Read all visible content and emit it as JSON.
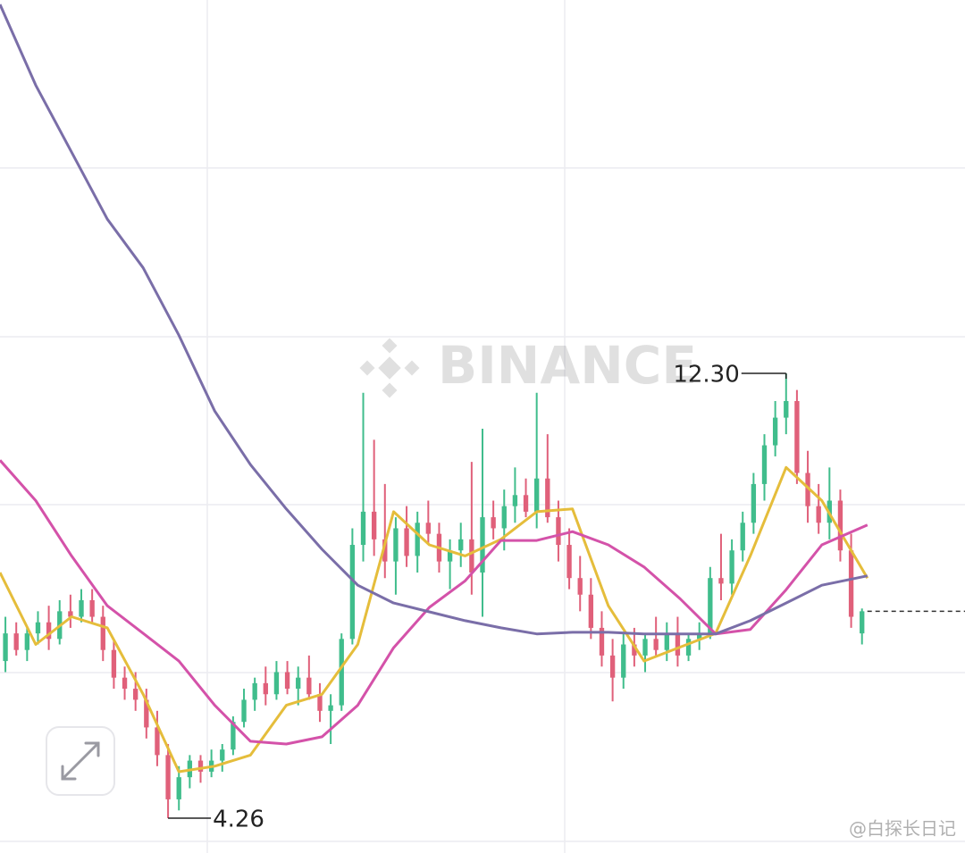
{
  "chart_data": {
    "type": "candlestick",
    "watermark": "BINANCE",
    "credit": "@白探长日记",
    "ylim": [
      3.63,
      19.05
    ],
    "xlim": [
      -0.5,
      88.5
    ],
    "up_color": "#40bd8c",
    "down_color": "#e0607a",
    "open": [
      7.1,
      7.6,
      7.3,
      7.6,
      7.8,
      7.5,
      8.0,
      7.9,
      8.2,
      7.9,
      7.3,
      6.8,
      6.6,
      6.4,
      5.9,
      5.4,
      4.6,
      5.0,
      5.3,
      5.1,
      5.3,
      5.5,
      6.0,
      6.4,
      6.7,
      6.5,
      6.9,
      6.6,
      6.8,
      6.5,
      6.2,
      6.3,
      7.5,
      9.2,
      9.8,
      9.3,
      8.9,
      9.5,
      9.0,
      9.6,
      9.4,
      8.9,
      9.1,
      9.3,
      8.7,
      9.7,
      9.5,
      9.9,
      10.1,
      9.8,
      10.4,
      9.7,
      9.2,
      8.6,
      8.3,
      7.7,
      7.2,
      6.8,
      7.4,
      7.2,
      7.5,
      7.3,
      7.6,
      7.2,
      7.5,
      7.6,
      8.6,
      8.5,
      9.1,
      9.6,
      10.3,
      11.0,
      11.5,
      11.8,
      10.5,
      9.9,
      9.6,
      10.0,
      9.1,
      7.6
    ],
    "high": [
      7.9,
      7.8,
      7.7,
      8.0,
      8.1,
      8.2,
      8.3,
      8.4,
      8.4,
      8.1,
      7.5,
      7.0,
      6.9,
      6.6,
      6.2,
      5.6,
      5.2,
      5.4,
      5.4,
      5.5,
      5.6,
      6.1,
      6.6,
      6.8,
      7.0,
      7.1,
      7.1,
      7.0,
      7.2,
      6.7,
      6.5,
      7.6,
      9.5,
      11.95,
      11.1,
      10.3,
      9.7,
      9.9,
      9.8,
      10.0,
      9.6,
      9.3,
      9.6,
      10.7,
      11.3,
      10.0,
      10.2,
      10.6,
      10.4,
      11.95,
      11.2,
      10.0,
      9.5,
      9.0,
      8.6,
      8.0,
      7.5,
      7.6,
      7.7,
      7.6,
      7.9,
      7.8,
      7.9,
      7.6,
      7.8,
      8.8,
      9.4,
      9.3,
      9.8,
      10.5,
      11.2,
      11.8,
      12.3,
      12.0,
      10.9,
      10.3,
      10.6,
      10.2,
      9.4,
      8.05
    ],
    "low": [
      6.9,
      7.2,
      7.1,
      7.4,
      7.3,
      7.4,
      7.7,
      7.8,
      7.8,
      7.1,
      6.6,
      6.4,
      6.2,
      5.7,
      5.2,
      4.26,
      4.4,
      4.8,
      4.9,
      5.0,
      5.1,
      5.4,
      5.9,
      6.2,
      6.3,
      6.4,
      6.5,
      6.3,
      6.4,
      6.0,
      5.6,
      6.2,
      7.4,
      8.9,
      9.0,
      8.6,
      8.3,
      8.8,
      8.7,
      9.2,
      8.7,
      8.4,
      8.8,
      8.3,
      7.9,
      9.3,
      9.1,
      9.6,
      9.7,
      9.5,
      9.6,
      8.9,
      8.4,
      8.0,
      7.5,
      7.0,
      6.37,
      6.6,
      7.0,
      6.9,
      7.2,
      7.1,
      7.0,
      7.1,
      7.3,
      7.5,
      8.2,
      8.3,
      8.9,
      9.4,
      10.0,
      10.8,
      11.2,
      10.3,
      9.6,
      9.4,
      9.3,
      8.9,
      7.7,
      7.4
    ],
    "close": [
      7.6,
      7.3,
      7.6,
      7.8,
      7.5,
      8.0,
      7.9,
      8.2,
      7.9,
      7.3,
      6.8,
      6.6,
      6.4,
      5.9,
      5.4,
      4.6,
      5.0,
      5.3,
      5.1,
      5.3,
      5.5,
      6.0,
      6.4,
      6.7,
      6.5,
      6.9,
      6.6,
      6.8,
      6.5,
      6.2,
      6.3,
      7.5,
      9.2,
      9.8,
      9.3,
      8.9,
      9.5,
      9.0,
      9.6,
      9.4,
      8.9,
      9.1,
      9.3,
      8.7,
      9.7,
      9.5,
      9.9,
      10.1,
      9.8,
      10.4,
      9.7,
      9.2,
      8.6,
      8.3,
      7.7,
      7.2,
      6.8,
      7.4,
      7.2,
      7.5,
      7.3,
      7.6,
      7.2,
      7.5,
      7.6,
      8.6,
      8.5,
      9.1,
      9.6,
      10.3,
      11.0,
      11.5,
      11.8,
      10.5,
      9.9,
      9.6,
      10.0,
      9.1,
      7.9,
      8.0
    ],
    "ma_x": [
      -0.5,
      2.8,
      6.1,
      9.4,
      12.7,
      16.0,
      19.3,
      22.6,
      25.9,
      29.2,
      32.5,
      35.8,
      39.1,
      42.4,
      45.7,
      49.0,
      52.3,
      55.6,
      58.9,
      62.2,
      65.5,
      68.7,
      72.0,
      75.3,
      79.5
    ],
    "series": [
      {
        "color": "#e5bd3b",
        "values": [
          8.7,
          7.4,
          7.9,
          7.7,
          6.5,
          5.1,
          5.2,
          5.4,
          6.3,
          6.5,
          7.4,
          9.8,
          9.2,
          9.0,
          9.3,
          9.8,
          9.85,
          8.1,
          7.1,
          7.35,
          7.6,
          9.0,
          10.6,
          10.0,
          8.6
        ]
      },
      {
        "color": "#d452a9",
        "values": [
          10.73,
          10.0,
          9.0,
          8.1,
          7.6,
          7.1,
          6.3,
          5.65,
          5.6,
          5.73,
          6.3,
          7.34,
          8.07,
          8.55,
          9.28,
          9.28,
          9.44,
          9.2,
          8.8,
          8.23,
          7.59,
          7.67,
          8.39,
          9.2,
          9.56
        ]
      },
      {
        "color": "#7a6ea8",
        "values": [
          18.97,
          17.51,
          16.3,
          15.09,
          14.21,
          12.99,
          11.62,
          10.65,
          9.85,
          9.12,
          8.47,
          8.15,
          7.99,
          7.83,
          7.7,
          7.59,
          7.62,
          7.62,
          7.59,
          7.59,
          7.59,
          7.83,
          8.15,
          8.47,
          8.64
        ]
      }
    ],
    "annotations": [
      {
        "index": 15,
        "value": 4.26
      },
      {
        "index": 72,
        "value": 12.3,
        "label": "12.30"
      }
    ]
  }
}
